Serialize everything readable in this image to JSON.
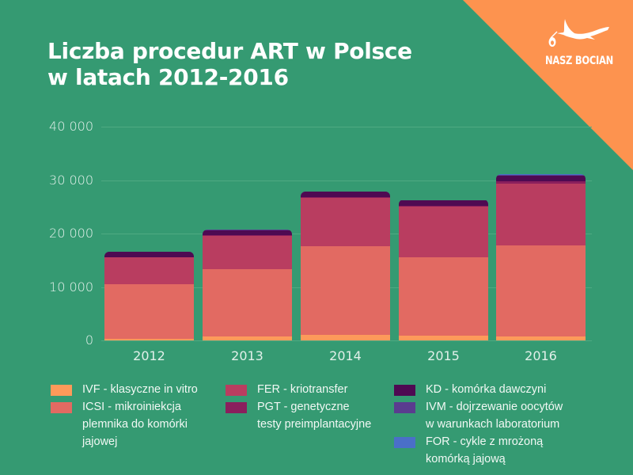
{
  "title_line1": "Liczba procedur ART w Polsce",
  "title_line2": "w latach 2012-2016",
  "logo": {
    "text": "NASZ BOCIAN",
    "icon": "stork-icon"
  },
  "colors": {
    "background": "#359a72",
    "corner": "#fd934f",
    "IVF": "#fd9a5a",
    "ICSI": "#e26a62",
    "FER": "#b93d60",
    "PGT": "#8a1f5d",
    "KD": "#4e0a52",
    "IVM": "#5a3c8f",
    "FOR": "#4a6fc8"
  },
  "chart_data": {
    "type": "bar",
    "stacked": true,
    "title": "Liczba procedur ART w Polsce w latach 2012-2016",
    "xlabel": "",
    "ylabel": "",
    "ylim": [
      0,
      40000
    ],
    "yticks": [
      "0",
      "10 000",
      "20 000",
      "30 000",
      "40 000"
    ],
    "grid": true,
    "legend_position": "bottom",
    "categories": [
      "2012",
      "2013",
      "2014",
      "2015",
      "2016"
    ],
    "series": [
      {
        "name": "IVF - klasyczne in vitro",
        "key": "IVF",
        "values": [
          300,
          700,
          1000,
          900,
          800
        ]
      },
      {
        "name": "ICSI - mikroiniekcja plemnika do komórki jajowej",
        "key": "ICSI",
        "values": [
          10200,
          12600,
          16600,
          14600,
          17000
        ]
      },
      {
        "name": "FER - kriotransfer",
        "key": "FER",
        "values": [
          5000,
          6200,
          9000,
          9500,
          11500
        ]
      },
      {
        "name": "PGT - genetyczne testy preimplantacyjne",
        "key": "PGT",
        "values": [
          100,
          150,
          150,
          150,
          450
        ]
      },
      {
        "name": "KD - komórka dawczyni",
        "key": "KD",
        "values": [
          1000,
          1000,
          1050,
          1050,
          1050
        ]
      },
      {
        "name": "IVM - dojrzewanie oocytów w warunkach laboratorium",
        "key": "IVM",
        "values": [
          50,
          150,
          100,
          100,
          150
        ]
      },
      {
        "name": "FOR - cykle z mrożoną komórką jajową",
        "key": "FOR",
        "values": [
          0,
          0,
          0,
          0,
          150
        ]
      }
    ]
  },
  "legend": {
    "col1": [
      {
        "key": "IVF",
        "line1": "IVF - klasyczne in vitro"
      },
      {
        "key": "ICSI",
        "line1": "ICSI - mikroiniekcja",
        "line2": "plemnika do komórki",
        "line3": "jajowej"
      }
    ],
    "col2": [
      {
        "key": "FER",
        "line1": "FER - kriotransfer"
      },
      {
        "key": "PGT",
        "line1": "PGT - genetyczne",
        "line2": "testy preimplantacyjne"
      }
    ],
    "col3": [
      {
        "key": "KD",
        "line1": "KD - komórka dawczyni"
      },
      {
        "key": "IVM",
        "line1": "IVM - dojrzewanie oocytów",
        "line2": "w warunkach laboratorium"
      },
      {
        "key": "FOR",
        "line1": "FOR - cykle z mrożoną",
        "line2": "komórką jajową"
      }
    ]
  }
}
